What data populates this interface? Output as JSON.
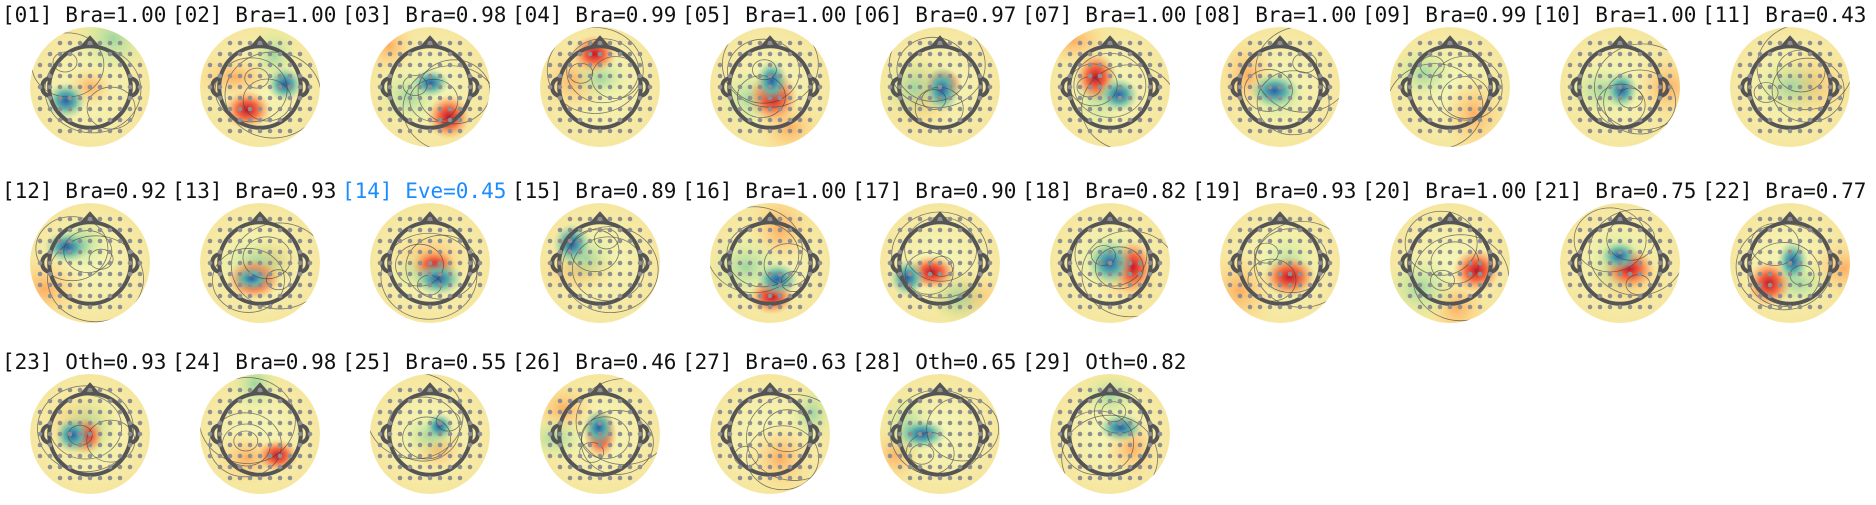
{
  "components": [
    {
      "label": "[01] Bra=1.00"
    },
    {
      "label": "[02] Bra=1.00"
    },
    {
      "label": "[03] Bra=0.98"
    },
    {
      "label": "[04] Bra=0.99"
    },
    {
      "label": "[05] Bra=1.00"
    },
    {
      "label": "[06] Bra=0.97"
    },
    {
      "label": "[07] Bra=1.00"
    },
    {
      "label": "[08] Bra=1.00"
    },
    {
      "label": "[09] Bra=0.99"
    },
    {
      "label": "[10] Bra=1.00"
    },
    {
      "label": "[11] Bra=0.43"
    },
    {
      "label": "[12] Bra=0.92"
    },
    {
      "label": "[13] Bra=0.93"
    },
    {
      "label": "[14] Eve=0.45",
      "color": "#1a8cff"
    },
    {
      "label": "[15] Bra=0.89"
    },
    {
      "label": "[16] Bra=1.00"
    },
    {
      "label": "[17] Bra=0.90"
    },
    {
      "label": "[18] Bra=0.82"
    },
    {
      "label": "[19] Bra=0.93"
    },
    {
      "label": "[20] Bra=1.00"
    },
    {
      "label": "[21] Bra=0.75"
    },
    {
      "label": "[22] Bra=0.77"
    },
    {
      "label": "[23] Oth=0.93"
    },
    {
      "label": "[24] Bra=0.98"
    },
    {
      "label": "[25] Bra=0.55"
    },
    {
      "label": "[26] Bra=0.46"
    },
    {
      "label": "[27] Bra=0.63"
    },
    {
      "label": "[28] Oth=0.65"
    },
    {
      "label": "[29] Oth=0.82"
    }
  ]
}
